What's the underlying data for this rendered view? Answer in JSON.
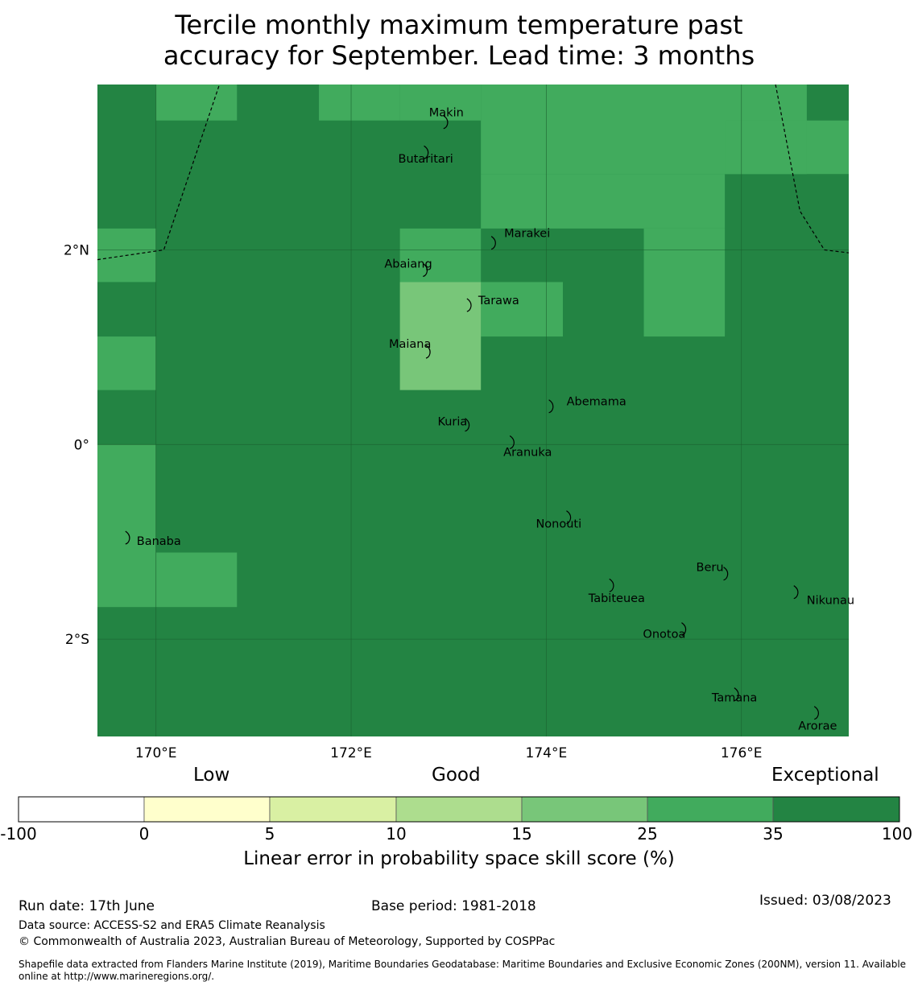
{
  "title_line1": "Tercile monthly maximum temperature past",
  "title_line2": "accuracy for September. Lead time: 3 months",
  "map": {
    "lon_range": [
      169.4,
      177.1
    ],
    "lat_range": [
      -3.0,
      3.7
    ],
    "lon_ticks": [
      {
        "value": 170,
        "label": "170°E"
      },
      {
        "value": 172,
        "label": "172°E"
      },
      {
        "value": 174,
        "label": "174°E"
      },
      {
        "value": 176,
        "label": "176°E"
      }
    ],
    "lat_ticks": [
      {
        "value": 2,
        "label": "2°N"
      },
      {
        "value": 0,
        "label": "0°"
      },
      {
        "value": -2,
        "label": "2°S"
      }
    ],
    "colors": {
      "dark": "#238443",
      "medium": "#41ab5d",
      "light": "#78c679"
    },
    "cells": [
      {
        "lon0": 170.0,
        "lon1": 170.83,
        "lat0": 3.33,
        "lat1": 3.7,
        "level": "medium"
      },
      {
        "lon0": 171.67,
        "lon1": 172.5,
        "lat0": 3.33,
        "lat1": 3.7,
        "level": "medium"
      },
      {
        "lon0": 172.5,
        "lon1": 173.33,
        "lat0": 3.33,
        "lat1": 3.7,
        "level": "medium"
      },
      {
        "lon0": 173.33,
        "lon1": 176.67,
        "lat0": 2.78,
        "lat1": 3.7,
        "level": "medium"
      },
      {
        "lon0": 173.33,
        "lon1": 175.83,
        "lat0": 2.22,
        "lat1": 2.78,
        "level": "medium"
      },
      {
        "lon0": 175.83,
        "lon1": 176.67,
        "lat0": 2.78,
        "lat1": 3.33,
        "level": "medium"
      },
      {
        "lon0": 176.67,
        "lon1": 177.1,
        "lat0": 2.78,
        "lat1": 3.33,
        "level": "medium"
      },
      {
        "lon0": 175.0,
        "lon1": 175.83,
        "lat0": 1.11,
        "lat1": 2.22,
        "level": "medium"
      },
      {
        "lon0": 172.5,
        "lon1": 173.33,
        "lat0": 1.67,
        "lat1": 2.22,
        "level": "medium"
      },
      {
        "lon0": 173.33,
        "lon1": 174.17,
        "lat0": 1.11,
        "lat1": 1.67,
        "level": "medium"
      },
      {
        "lon0": 172.5,
        "lon1": 173.33,
        "lat0": 0.56,
        "lat1": 1.67,
        "level": "light"
      },
      {
        "lon0": 169.4,
        "lon1": 170.0,
        "lat0": 1.67,
        "lat1": 2.22,
        "level": "medium"
      },
      {
        "lon0": 169.4,
        "lon1": 170.0,
        "lat0": 0.56,
        "lat1": 1.11,
        "level": "medium"
      },
      {
        "lon0": 169.4,
        "lon1": 170.0,
        "lat0": -1.67,
        "lat1": 0.0,
        "level": "medium"
      },
      {
        "lon0": 170.0,
        "lon1": 170.83,
        "lat0": -1.67,
        "lat1": -1.11,
        "level": "medium"
      }
    ],
    "eez_boundaries": [
      [
        [
          169.4,
          1.9
        ],
        [
          170.08,
          2.0
        ],
        [
          170.65,
          3.7
        ]
      ],
      [
        [
          176.35,
          3.7
        ],
        [
          176.6,
          2.4
        ],
        [
          176.85,
          2.0
        ],
        [
          177.1,
          1.97
        ]
      ]
    ],
    "islands": [
      {
        "name": "Makin",
        "lon": 172.98,
        "lat": 3.33
      },
      {
        "name": "Butaritari",
        "lon": 172.78,
        "lat": 3.02
      },
      {
        "name": "Marakei",
        "lon": 173.47,
        "lat": 2.09
      },
      {
        "name": "Abaiang",
        "lon": 172.77,
        "lat": 1.81
      },
      {
        "name": "Tarawa",
        "lon": 173.22,
        "lat": 1.45
      },
      {
        "name": "Maiana",
        "lon": 172.8,
        "lat": 0.97
      },
      {
        "name": "Abemama",
        "lon": 174.06,
        "lat": 0.41
      },
      {
        "name": "Kuria",
        "lon": 173.2,
        "lat": 0.22
      },
      {
        "name": "Aranuka",
        "lon": 173.66,
        "lat": 0.04
      },
      {
        "name": "Nonouti",
        "lon": 174.24,
        "lat": -0.73
      },
      {
        "name": "Banaba",
        "lon": 169.72,
        "lat": -0.94
      },
      {
        "name": "Beru",
        "lon": 175.85,
        "lat": -1.31
      },
      {
        "name": "Nikunau",
        "lon": 176.57,
        "lat": -1.5
      },
      {
        "name": "Tabiteuea",
        "lon": 174.68,
        "lat": -1.43
      },
      {
        "name": "Onotoa",
        "lon": 175.42,
        "lat": -1.88
      },
      {
        "name": "Tamana",
        "lon": 175.96,
        "lat": -2.55
      },
      {
        "name": "Arorae",
        "lon": 176.78,
        "lat": -2.74
      }
    ]
  },
  "colorbar": {
    "title": "Linear error in probability space skill score (%)",
    "category_labels": [
      "Low",
      "Good",
      "Exceptional"
    ],
    "ticks": [
      "-100",
      "0",
      "5",
      "10",
      "15",
      "25",
      "35",
      "100"
    ],
    "colors": [
      "#ffffff",
      "#ffffcc",
      "#d9f0a3",
      "#addd8e",
      "#78c679",
      "#41ab5d",
      "#238443"
    ]
  },
  "footer": {
    "run_date": "Run date: 17th June",
    "base_period": "Base period: 1981-2018",
    "issued": "Issued: 03/08/2023",
    "data_source": "Data source: ACCESS-S2 and ERA5 Climate Reanalysis",
    "copyright": "© Commonwealth of Australia 2023, Australian Bureau of Meteorology, Supported by COSPPac",
    "shapefile": "Shapefile data extracted from Flanders Marine Institute (2019), Maritime Boundaries Geodatabase: Maritime Boundaries and Exclusive Economic Zones (200NM), version 11. Available online at http://www.marineregions.org/."
  }
}
